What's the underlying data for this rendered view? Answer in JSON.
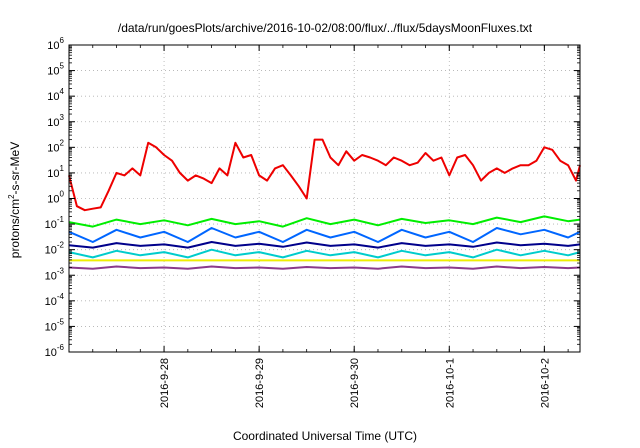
{
  "chart_data": {
    "type": "line",
    "title": "/data/run/goesPlots/archive/2016-10-02/08:00/flux/../flux/5daysMoonFluxes.txt",
    "xlabel": "Coordinated Universal Time (UTC)",
    "ylabel_parts": [
      "protons/cm",
      "2",
      "-s-sr-MeV"
    ],
    "x_range": [
      "2016-09-27T00:00",
      "2016-10-02T09:00"
    ],
    "x_ticks": [
      "2016-9-28",
      "2016-9-29",
      "2016-9-30",
      "2016-10-1",
      "2016-10-2"
    ],
    "y_scale": "log",
    "ylim": [
      1e-06,
      1000000.0
    ],
    "y_ticks": [
      {
        "base": "10",
        "exp": "6"
      },
      {
        "base": "10",
        "exp": "5"
      },
      {
        "base": "10",
        "exp": "4"
      },
      {
        "base": "10",
        "exp": "3"
      },
      {
        "base": "10",
        "exp": "2"
      },
      {
        "base": "10",
        "exp": "1"
      },
      {
        "base": "10",
        "exp": "0"
      },
      {
        "base": "10",
        "exp": "-1"
      },
      {
        "base": "10",
        "exp": "-2"
      },
      {
        "base": "10",
        "exp": "-3"
      },
      {
        "base": "10",
        "exp": "-4"
      },
      {
        "base": "10",
        "exp": "-5"
      },
      {
        "base": "10",
        "exp": "-6"
      }
    ],
    "grid": true,
    "series": [
      {
        "color": "#ee0000",
        "x": [
          "2016-09-27T00:00",
          "2016-09-27T02:00",
          "2016-09-27T04:00",
          "2016-09-27T06:00",
          "2016-09-27T08:00",
          "2016-09-27T10:00",
          "2016-09-27T12:00",
          "2016-09-27T14:00",
          "2016-09-27T16:00",
          "2016-09-27T18:00",
          "2016-09-27T20:00",
          "2016-09-27T22:00",
          "2016-09-28T00:00",
          "2016-09-28T02:00",
          "2016-09-28T04:00",
          "2016-09-28T06:00",
          "2016-09-28T08:00",
          "2016-09-28T10:00",
          "2016-09-28T12:00",
          "2016-09-28T14:00",
          "2016-09-28T16:00",
          "2016-09-28T18:00",
          "2016-09-28T20:00",
          "2016-09-28T22:00",
          "2016-09-29T00:00",
          "2016-09-29T02:00",
          "2016-09-29T04:00",
          "2016-09-29T06:00",
          "2016-09-29T08:00",
          "2016-09-29T10:00",
          "2016-09-29T12:00",
          "2016-09-29T14:00",
          "2016-09-29T16:00",
          "2016-09-29T18:00",
          "2016-09-29T20:00",
          "2016-09-29T22:00",
          "2016-09-30T00:00",
          "2016-09-30T02:00",
          "2016-09-30T04:00",
          "2016-09-30T06:00",
          "2016-09-30T08:00",
          "2016-09-30T10:00",
          "2016-09-30T12:00",
          "2016-09-30T14:00",
          "2016-09-30T16:00",
          "2016-09-30T18:00",
          "2016-09-30T20:00",
          "2016-09-30T22:00",
          "2016-10-01T00:00",
          "2016-10-01T02:00",
          "2016-10-01T04:00",
          "2016-10-01T06:00",
          "2016-10-01T08:00",
          "2016-10-01T10:00",
          "2016-10-01T12:00",
          "2016-10-01T14:00",
          "2016-10-01T16:00",
          "2016-10-01T18:00",
          "2016-10-01T20:00",
          "2016-10-01T22:00",
          "2016-10-02T00:00",
          "2016-10-02T02:00",
          "2016-10-02T04:00",
          "2016-10-02T06:00",
          "2016-10-02T08:00",
          "2016-10-02T09:00"
        ],
        "values": [
          8,
          0.5,
          0.35,
          0.4,
          0.45,
          2,
          10,
          8,
          15,
          8,
          150,
          100,
          50,
          30,
          10,
          5,
          8,
          6,
          4,
          15,
          8,
          150,
          40,
          50,
          8,
          5,
          15,
          20,
          8,
          3,
          1,
          200,
          200,
          40,
          20,
          70,
          30,
          50,
          40,
          30,
          20,
          40,
          30,
          20,
          25,
          60,
          30,
          40,
          8,
          40,
          50,
          20,
          5,
          10,
          15,
          10,
          15,
          20,
          20,
          30,
          100,
          80,
          30,
          20,
          5,
          20
        ]
      },
      {
        "color": "#00ee00",
        "x": [
          "2016-09-27T00:00",
          "2016-09-27T06:00",
          "2016-09-27T12:00",
          "2016-09-27T18:00",
          "2016-09-28T00:00",
          "2016-09-28T06:00",
          "2016-09-28T12:00",
          "2016-09-28T18:00",
          "2016-09-29T00:00",
          "2016-09-29T06:00",
          "2016-09-29T12:00",
          "2016-09-29T18:00",
          "2016-09-30T00:00",
          "2016-09-30T06:00",
          "2016-09-30T12:00",
          "2016-09-30T18:00",
          "2016-10-01T00:00",
          "2016-10-01T06:00",
          "2016-10-01T12:00",
          "2016-10-01T18:00",
          "2016-10-02T00:00",
          "2016-10-02T06:00",
          "2016-10-02T09:00"
        ],
        "values": [
          0.12,
          0.08,
          0.15,
          0.1,
          0.14,
          0.09,
          0.16,
          0.1,
          0.13,
          0.08,
          0.17,
          0.1,
          0.15,
          0.09,
          0.16,
          0.11,
          0.14,
          0.1,
          0.18,
          0.12,
          0.2,
          0.13,
          0.15
        ]
      },
      {
        "color": "#0066ff",
        "x": [
          "2016-09-27T00:00",
          "2016-09-27T06:00",
          "2016-09-27T12:00",
          "2016-09-27T18:00",
          "2016-09-28T00:00",
          "2016-09-28T06:00",
          "2016-09-28T12:00",
          "2016-09-28T18:00",
          "2016-09-29T00:00",
          "2016-09-29T06:00",
          "2016-09-29T12:00",
          "2016-09-29T18:00",
          "2016-09-30T00:00",
          "2016-09-30T06:00",
          "2016-09-30T12:00",
          "2016-09-30T18:00",
          "2016-10-01T00:00",
          "2016-10-01T06:00",
          "2016-10-01T12:00",
          "2016-10-01T18:00",
          "2016-10-02T00:00",
          "2016-10-02T06:00",
          "2016-10-02T09:00"
        ],
        "values": [
          0.05,
          0.02,
          0.06,
          0.03,
          0.05,
          0.02,
          0.07,
          0.03,
          0.05,
          0.02,
          0.06,
          0.03,
          0.05,
          0.02,
          0.06,
          0.03,
          0.05,
          0.02,
          0.07,
          0.04,
          0.06,
          0.03,
          0.05
        ]
      },
      {
        "color": "#00008b",
        "x": [
          "2016-09-27T00:00",
          "2016-09-27T06:00",
          "2016-09-27T12:00",
          "2016-09-27T18:00",
          "2016-09-28T00:00",
          "2016-09-28T06:00",
          "2016-09-28T12:00",
          "2016-09-28T18:00",
          "2016-09-29T00:00",
          "2016-09-29T06:00",
          "2016-09-29T12:00",
          "2016-09-29T18:00",
          "2016-09-30T00:00",
          "2016-09-30T06:00",
          "2016-09-30T12:00",
          "2016-09-30T18:00",
          "2016-10-01T00:00",
          "2016-10-01T06:00",
          "2016-10-01T12:00",
          "2016-10-01T18:00",
          "2016-10-02T00:00",
          "2016-10-02T06:00",
          "2016-10-02T09:00"
        ],
        "values": [
          0.015,
          0.012,
          0.018,
          0.014,
          0.016,
          0.012,
          0.02,
          0.014,
          0.017,
          0.013,
          0.019,
          0.014,
          0.016,
          0.012,
          0.018,
          0.014,
          0.016,
          0.013,
          0.019,
          0.015,
          0.017,
          0.014,
          0.016
        ]
      },
      {
        "color": "#00cccc",
        "x": [
          "2016-09-27T00:00",
          "2016-09-27T06:00",
          "2016-09-27T12:00",
          "2016-09-27T18:00",
          "2016-09-28T00:00",
          "2016-09-28T06:00",
          "2016-09-28T12:00",
          "2016-09-28T18:00",
          "2016-09-29T00:00",
          "2016-09-29T06:00",
          "2016-09-29T12:00",
          "2016-09-29T18:00",
          "2016-09-30T00:00",
          "2016-09-30T06:00",
          "2016-09-30T12:00",
          "2016-09-30T18:00",
          "2016-10-01T00:00",
          "2016-10-01T06:00",
          "2016-10-01T12:00",
          "2016-10-01T18:00",
          "2016-10-02T00:00",
          "2016-10-02T06:00",
          "2016-10-02T09:00"
        ],
        "values": [
          0.008,
          0.005,
          0.009,
          0.006,
          0.008,
          0.005,
          0.01,
          0.006,
          0.008,
          0.005,
          0.009,
          0.006,
          0.008,
          0.005,
          0.009,
          0.006,
          0.008,
          0.005,
          0.01,
          0.006,
          0.009,
          0.006,
          0.008
        ]
      },
      {
        "color": "#eeee00",
        "x": [
          "2016-09-27T00:00",
          "2016-10-02T09:00"
        ],
        "values": [
          0.0038,
          0.0038
        ]
      },
      {
        "color": "#8b3a8b",
        "x": [
          "2016-09-27T00:00",
          "2016-09-27T06:00",
          "2016-09-27T12:00",
          "2016-09-27T18:00",
          "2016-09-28T00:00",
          "2016-09-28T06:00",
          "2016-09-28T12:00",
          "2016-09-28T18:00",
          "2016-09-29T00:00",
          "2016-09-29T06:00",
          "2016-09-29T12:00",
          "2016-09-29T18:00",
          "2016-09-30T00:00",
          "2016-09-30T06:00",
          "2016-09-30T12:00",
          "2016-09-30T18:00",
          "2016-10-01T00:00",
          "2016-10-01T06:00",
          "2016-10-01T12:00",
          "2016-10-01T18:00",
          "2016-10-02T00:00",
          "2016-10-02T06:00",
          "2016-10-02T09:00"
        ],
        "values": [
          0.002,
          0.0018,
          0.0022,
          0.0019,
          0.002,
          0.0018,
          0.0022,
          0.0019,
          0.002,
          0.0018,
          0.0021,
          0.0019,
          0.002,
          0.0018,
          0.0022,
          0.0019,
          0.002,
          0.0018,
          0.0022,
          0.0019,
          0.0021,
          0.0019,
          0.002
        ]
      }
    ]
  }
}
